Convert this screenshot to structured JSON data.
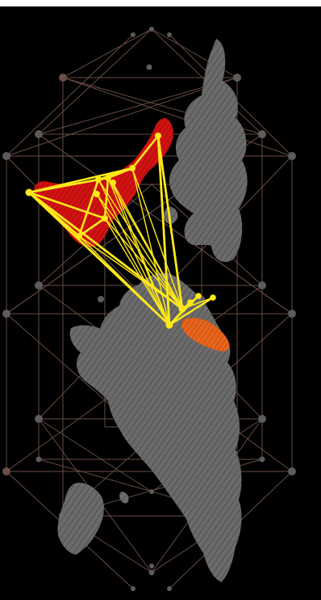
{
  "colors": {
    "background": "#000000",
    "land": "#6e6e6e",
    "grid_line": "#7a5a50",
    "grid_node": "#5c5c5c",
    "highlight_red": "#d01010",
    "highlight_orange": "#e8631a",
    "flow_line": "#ffe81a",
    "flow_node": "#ffe81a"
  },
  "map": {
    "kind": "world map, rotated 90 degrees, with geodesic grid overlay",
    "highlighted_regions": [
      {
        "name": "region-red",
        "color": "#d01010"
      },
      {
        "name": "region-orange",
        "color": "#e8631a"
      }
    ],
    "flow_hubs": 2,
    "flow_origins": 9
  }
}
